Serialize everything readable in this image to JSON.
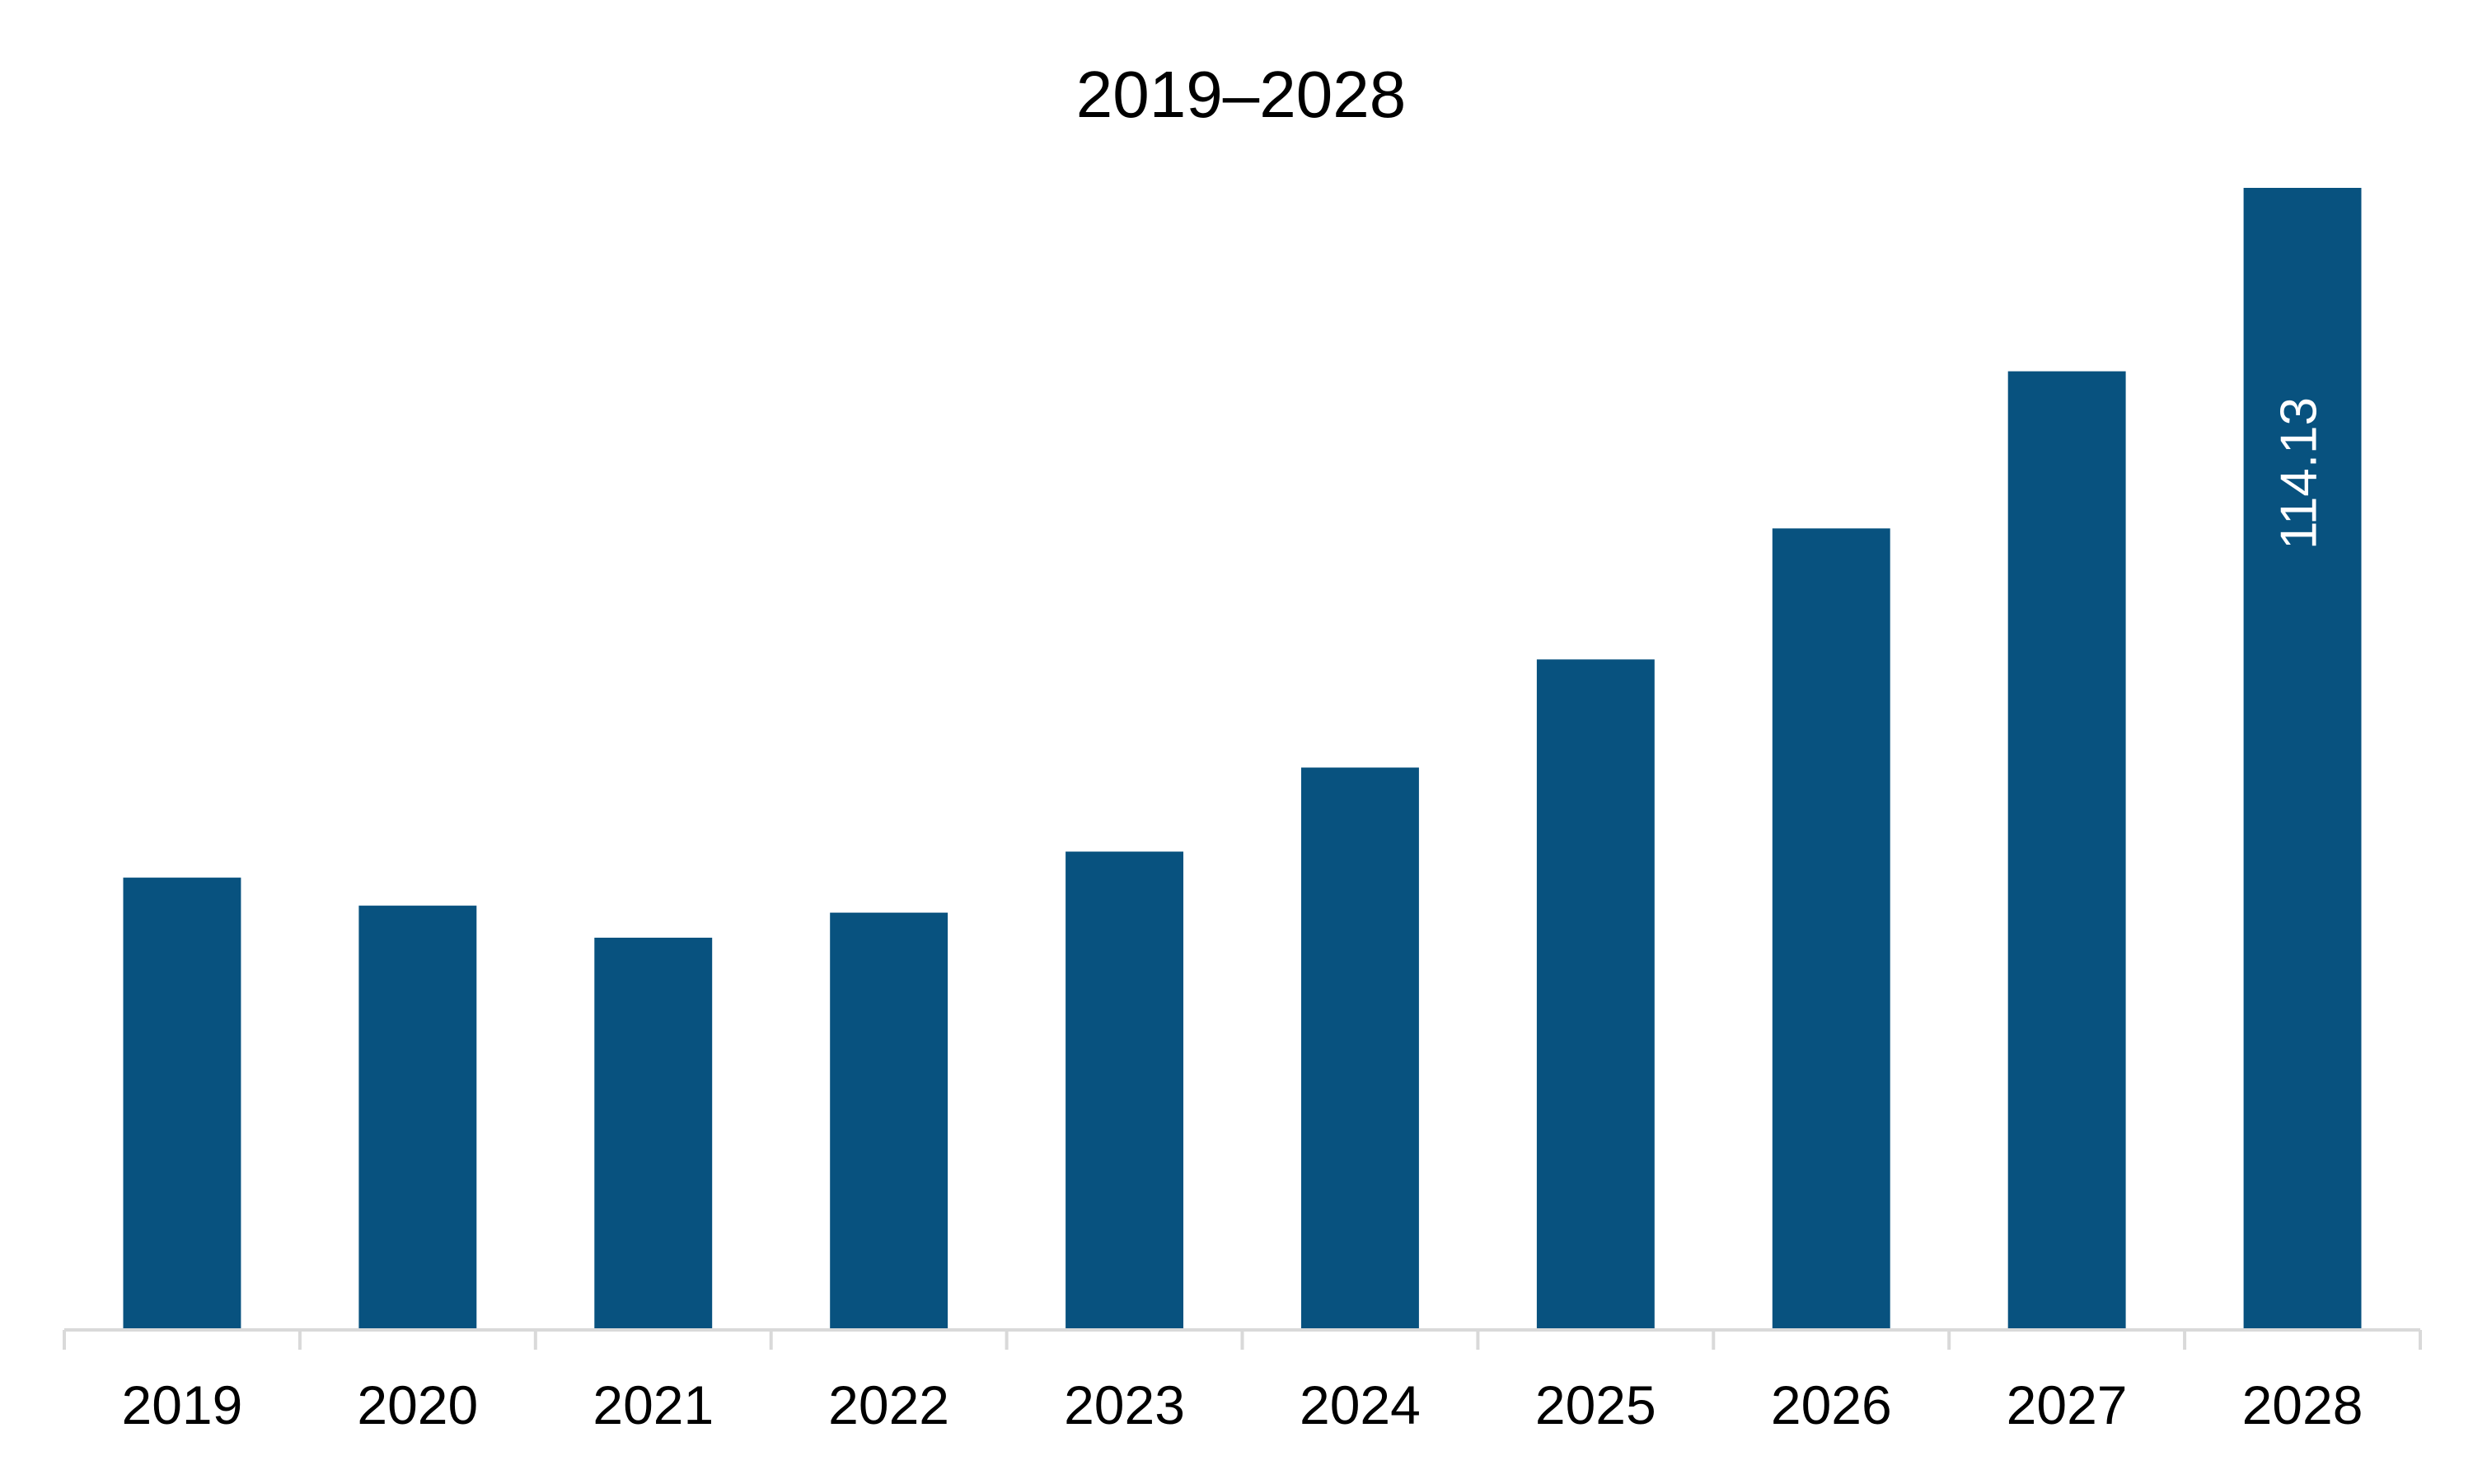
{
  "chart_data": {
    "type": "bar",
    "title": "2019–2028",
    "xlabel": "",
    "ylabel": "",
    "categories": [
      "2019",
      "2020",
      "2021",
      "2022",
      "2023",
      "2024",
      "2025",
      "2026",
      "2027",
      "2028"
    ],
    "values": [
      45.2,
      42.4,
      39.2,
      41.7,
      47.8,
      56.2,
      67.0,
      80.1,
      95.8,
      114.13
    ],
    "ylim": [
      0,
      120
    ],
    "grid": false,
    "legend": "none",
    "bar_color": "#08527F",
    "axis_color": "#D9D9D9",
    "data_labels": [
      {
        "category": "2028",
        "text": "114.13"
      }
    ]
  }
}
